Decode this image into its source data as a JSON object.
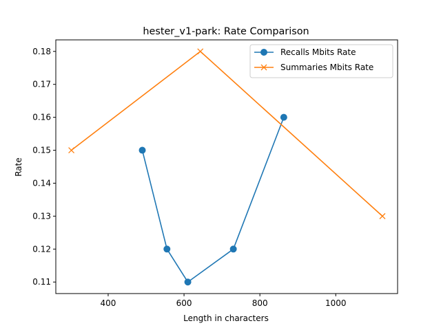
{
  "chart_data": {
    "type": "line",
    "title": "hester_v1-park: Rate Comparison",
    "xlabel": "Length in characters",
    "ylabel": "Rate",
    "xlim": [
      262,
      1163
    ],
    "ylim": [
      0.1065,
      0.1835
    ],
    "xticks": [
      400,
      600,
      800,
      1000
    ],
    "yticks": [
      0.11,
      0.12,
      0.13,
      0.14,
      0.15,
      0.16,
      0.17,
      0.18
    ],
    "grid": false,
    "legend_position": "top-right",
    "series": [
      {
        "name": "Recalls Mbits Rate",
        "color": "#1f77b4",
        "marker": "circle",
        "points": [
          {
            "x": 490,
            "y": 0.15
          },
          {
            "x": 555,
            "y": 0.12
          },
          {
            "x": 610,
            "y": 0.11
          },
          {
            "x": 730,
            "y": 0.12
          },
          {
            "x": 863,
            "y": 0.16
          }
        ]
      },
      {
        "name": "Summaries Mbits Rate",
        "color": "#ff7f0e",
        "marker": "x",
        "points": [
          {
            "x": 303,
            "y": 0.15
          },
          {
            "x": 643,
            "y": 0.18
          },
          {
            "x": 1123,
            "y": 0.13
          }
        ]
      }
    ]
  }
}
